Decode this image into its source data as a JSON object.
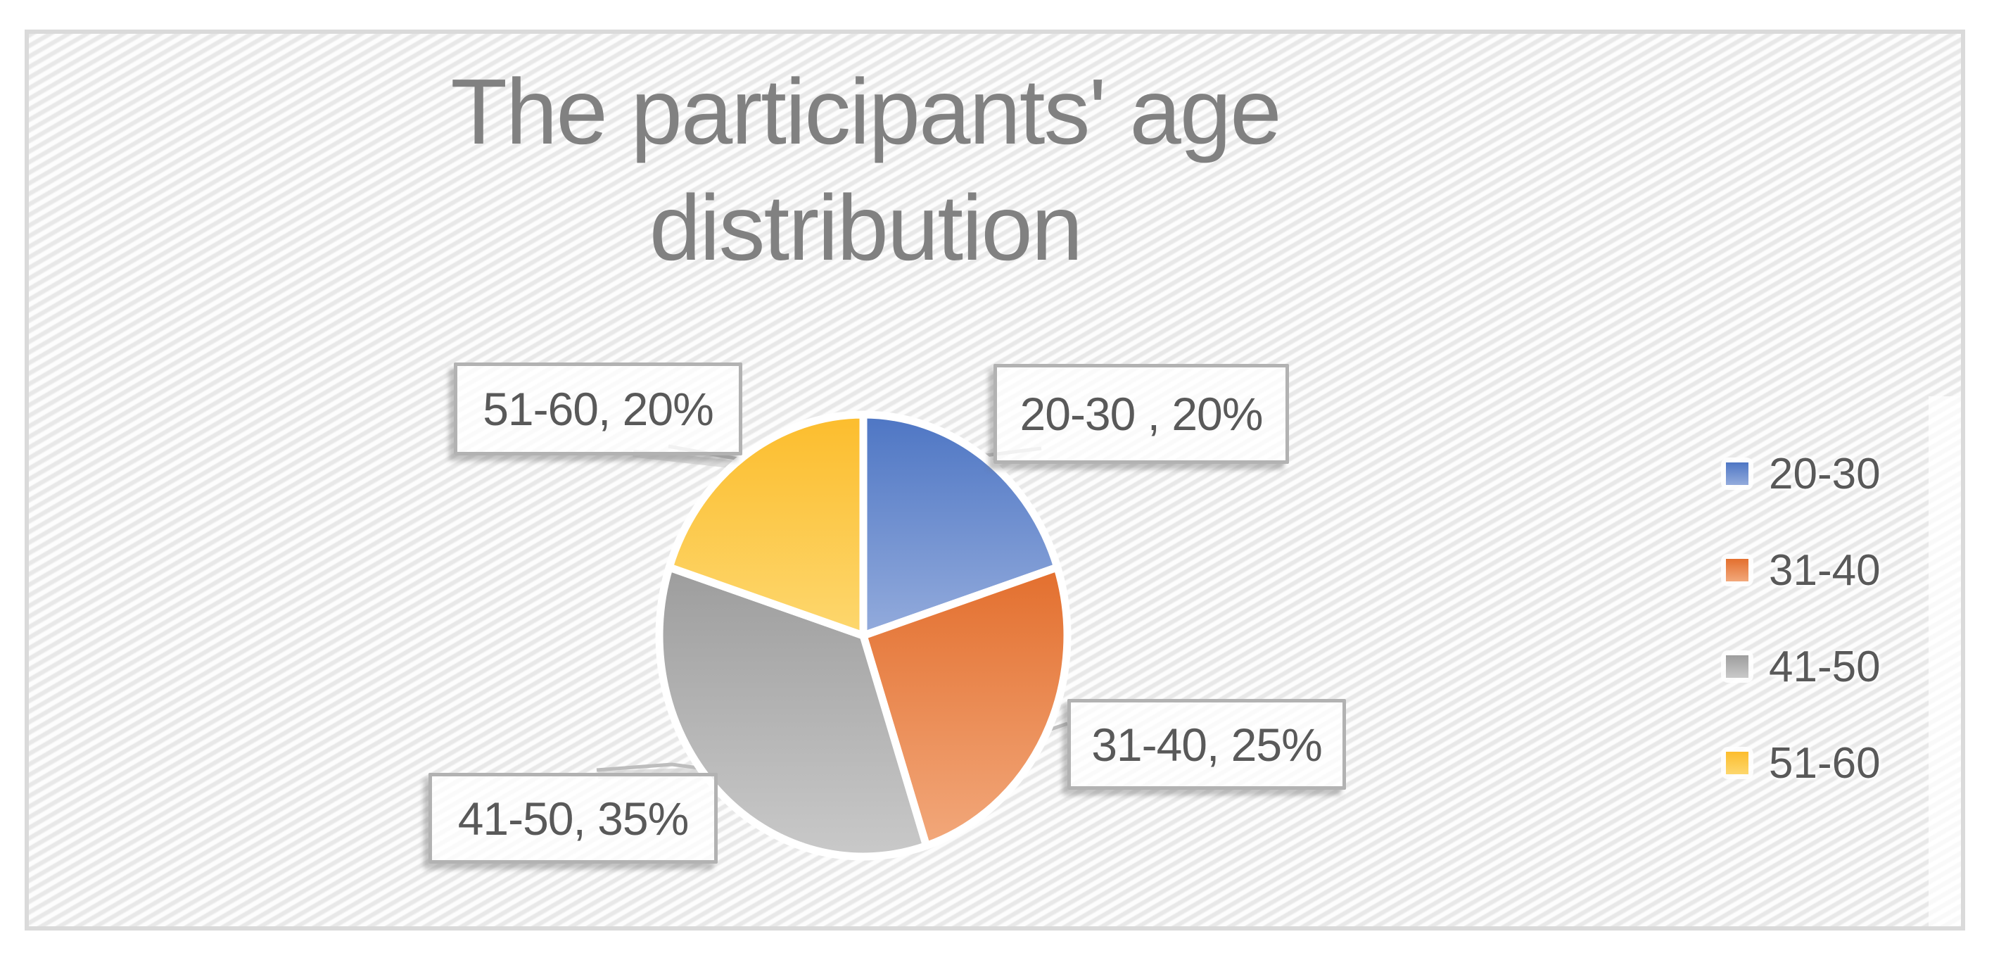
{
  "window": {
    "background": "#ffffff",
    "frame_border_color": "#dadada",
    "pattern_stripe_color": "#e8e8e8"
  },
  "chart_data": {
    "type": "pie",
    "title": "The participants' age distribution",
    "title_lines": [
      "The participants' age",
      "distribution"
    ],
    "categories": [
      "20-30",
      "31-40",
      "41-50",
      "51-60"
    ],
    "values": [
      20,
      25,
      35,
      20
    ],
    "unit": "percent",
    "start_angle_deg": 0,
    "direction": "clockwise",
    "data_labels": [
      "20-30 , 20%",
      "31-40, 25%",
      "41-50, 35%",
      "51-60, 20%"
    ],
    "legend_position": "right",
    "slice_colors": [
      {
        "name": "blue",
        "top": "#4e76c4",
        "bottom": "#93abdc"
      },
      {
        "name": "orange",
        "top": "#e36f2e",
        "bottom": "#f2a87b"
      },
      {
        "name": "gray",
        "top": "#9d9d9d",
        "bottom": "#c9c9c9"
      },
      {
        "name": "yellow",
        "top": "#fcbd2d",
        "bottom": "#fdd76e"
      }
    ],
    "title_color": "#818181",
    "label_text_color": "#595959"
  },
  "callouts": {
    "label_20_30": "20-30 , 20%",
    "label_31_40": "31-40, 25%",
    "label_41_50": "41-50, 35%",
    "label_51_60": "51-60, 20%"
  },
  "legend": {
    "items": [
      {
        "label": "20-30"
      },
      {
        "label": "31-40"
      },
      {
        "label": "41-50"
      },
      {
        "label": "51-60"
      }
    ]
  }
}
